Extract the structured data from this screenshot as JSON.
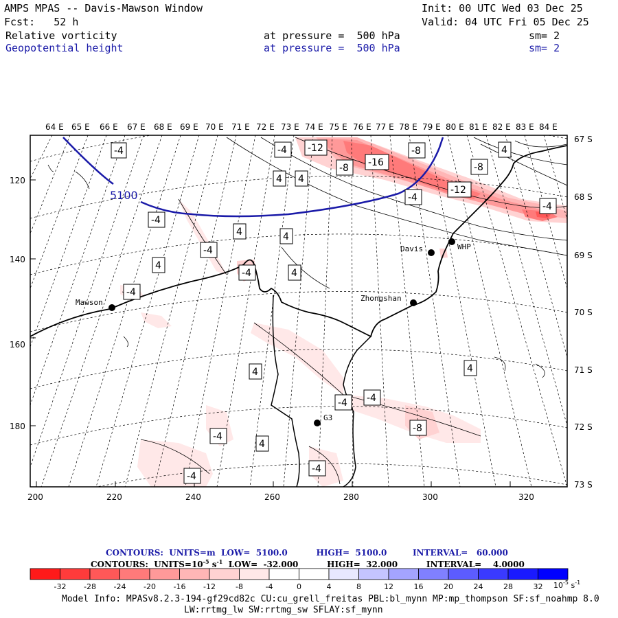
{
  "header": {
    "title": "AMPS MPAS -- Davis-Mawson Window",
    "init": "Init: 00 UTC Wed 03 Dec 25",
    "fcst": "Fcst:   52 h",
    "valid": "Valid: 04 UTC Fri 05 Dec 25",
    "field1": {
      "name": "Relative vorticity",
      "level": "at pressure =  500 hPa",
      "sm": "sm= 2"
    },
    "field2": {
      "name": "Geopotential height",
      "level": "at pressure =  500 hPa",
      "sm": "sm= 2"
    }
  },
  "axes": {
    "top_lon": [
      "64 E",
      "65 E",
      "66 E",
      "67 E",
      "68 E",
      "69 E",
      "70 E",
      "71 E",
      "72 E",
      "73 E",
      "74 E",
      "75 E",
      "76 E",
      "77 E",
      "78 E",
      "79 E",
      "80 E",
      "81 E",
      "82 E",
      "83 E",
      "84 E"
    ],
    "right_lat": [
      "67 S",
      "68 S",
      "69 S",
      "70 S",
      "71 S",
      "72 S",
      "73 S"
    ],
    "left_y": [
      "120",
      "140",
      "160",
      "180"
    ],
    "bottom_x": [
      "200",
      "220",
      "240",
      "260",
      "280",
      "300",
      "320"
    ]
  },
  "height_contour_label": "5100",
  "vorticity_labels": [
    "-4",
    "-12",
    "-8",
    "-16",
    "-8",
    "-8",
    "-12",
    "-4",
    "-4",
    "4",
    "4",
    "-4",
    "-4",
    "4",
    "4",
    "-4",
    "4",
    "-4",
    "4",
    "-4",
    "4",
    "-4",
    "-4",
    "-4",
    "4",
    "4",
    "-8",
    "-4",
    "4",
    "-4"
  ],
  "stations": {
    "mawson": "Mawson",
    "davis": "Davis",
    "whp": "WHP",
    "zhongshan": "Zhongshan",
    "g3": "G3"
  },
  "contours_info": {
    "line1": "CONTOURS:  UNITS=m  LOW=  5100.0          HIGH=  5100.0         INTERVAL=   60.000",
    "line2_pre": "CONTOURS:  UNITS=10",
    "line2_exp": "-5",
    "line2_post": " s",
    "line2_exp2": "-1",
    "line2_rest": "  LOW=  -32.000          HIGH=  32.000          INTERVAL=    4.0000"
  },
  "colorbar": {
    "colors": [
      "#ff1a1a",
      "#ff3b3b",
      "#ff5858",
      "#ff7a7a",
      "#ff9999",
      "#ffb6b6",
      "#ffd2d2",
      "#ffe8e8",
      "#ffffff",
      "#ffffff",
      "#e8e8ff",
      "#c4c4ff",
      "#a4a4ff",
      "#8080ff",
      "#5c5cff",
      "#3a3aff",
      "#1a1aff",
      "#0000ff"
    ],
    "ticks": [
      "-32",
      "-28",
      "-24",
      "-20",
      "-16",
      "-12",
      "-8",
      "-4",
      "0",
      "4",
      "8",
      "12",
      "16",
      "20",
      "24",
      "28",
      "32"
    ],
    "unit": "10",
    "unit_exp": "-5",
    "unit_s": " s",
    "unit_exp2": "-1"
  },
  "model_info": {
    "line1": "Model Info: MPASv8.2.3-194-gf29cd82c CU:cu_grell_freitas PBL:bl_mynn MP:mp_thompson SF:sf_noahmp 8.0",
    "line2": "LW:rrtmg_lw SW:rrtmg_sw SFLAY:sf_mynn"
  }
}
